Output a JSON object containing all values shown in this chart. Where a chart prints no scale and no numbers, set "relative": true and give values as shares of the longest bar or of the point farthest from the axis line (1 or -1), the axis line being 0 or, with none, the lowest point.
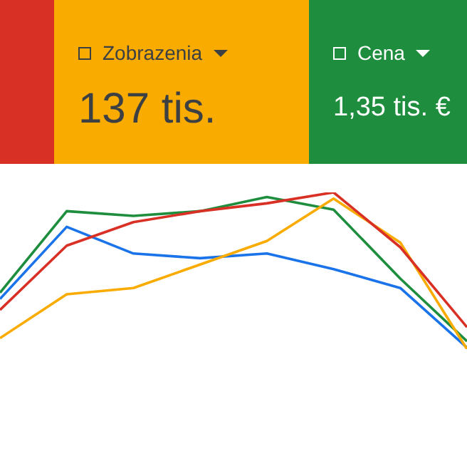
{
  "chart_data": {
    "type": "line",
    "relative": true,
    "legend": "top",
    "marker": "none",
    "categories": [
      null,
      null,
      null,
      null,
      null,
      null,
      null,
      null
    ],
    "annotations": [
      "137 tis.",
      "1,35 tis. €"
    ],
    "series": [
      {
        "color": "#d93025",
        "values": [
          0.25,
          0.66,
          0.81,
          0.88,
          0.93,
          1,
          0.65,
          0.14
        ]
      },
      {
        "name": "Zobrazenia",
        "color": "#f9ab00",
        "values": [
          0.07,
          0.35,
          0.39,
          0.54,
          0.69,
          0.96,
          0.68,
          0
        ]
      },
      {
        "name": "Cena",
        "color": "#1e8e3e",
        "values": [
          0.36,
          0.88,
          0.85,
          0.88,
          0.97,
          0.89,
          0.45,
          0.05
        ]
      },
      {
        "color": "#1a73e8",
        "values": [
          0.32,
          0.78,
          0.61,
          0.58,
          0.61,
          0.51,
          0.39,
          0.01
        ]
      }
    ]
  }
}
